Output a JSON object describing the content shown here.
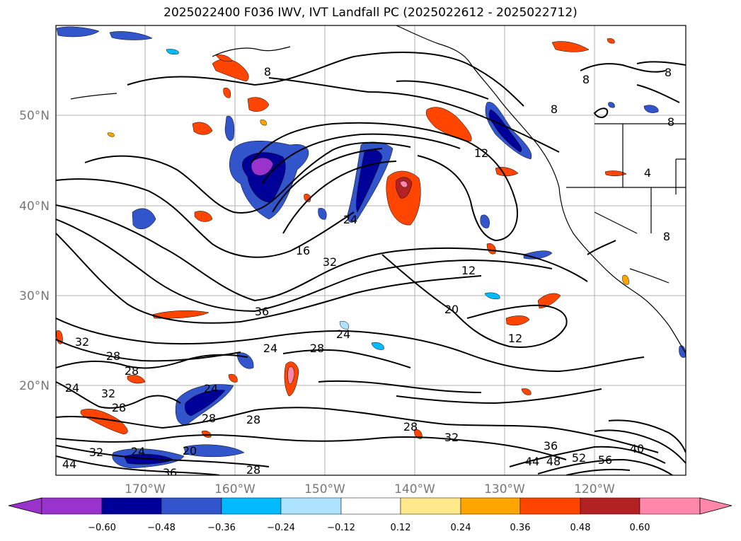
{
  "title": "2025022400 F036 IWV, IVT Landfall PC (2025022612 - 2025022712)",
  "lat_labels": [
    "50°N",
    "40°N",
    "30°N",
    "20°N"
  ],
  "lon_labels": [
    "170°W",
    "160°W",
    "150°W",
    "140°W",
    "130°W",
    "120°W"
  ],
  "colorbar": {
    "ticks": [
      "−0.60",
      "−0.48",
      "−0.36",
      "−0.24",
      "−0.12",
      "0.12",
      "0.24",
      "0.36",
      "0.48",
      "0.60"
    ],
    "colors": [
      "#9933cc",
      "#000099",
      "#3355cc",
      "#00bbff",
      "#aee3ff",
      "#ffffff",
      "#ffe88a",
      "#ffa500",
      "#ff4500",
      "#b22222",
      "#ff88aa"
    ]
  },
  "contour_labels": [
    "8",
    "8",
    "8",
    "8",
    "8",
    "8",
    "4",
    "12",
    "12",
    "12",
    "16",
    "20",
    "20",
    "24",
    "24",
    "24",
    "24",
    "24",
    "24",
    "28",
    "28",
    "28",
    "28",
    "28",
    "28",
    "28",
    "28",
    "32",
    "32",
    "32",
    "32",
    "32",
    "36",
    "36",
    "36",
    "40",
    "44",
    "44",
    "48",
    "52",
    "56"
  ]
}
